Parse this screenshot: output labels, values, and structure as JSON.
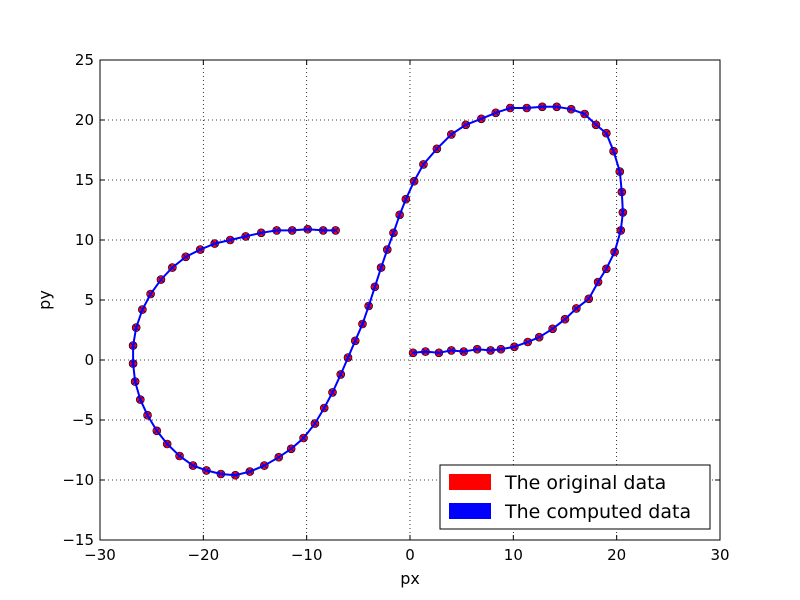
{
  "chart_data": {
    "type": "line",
    "title": "",
    "xlabel": "px",
    "ylabel": "py",
    "xlim": [
      -30,
      30
    ],
    "ylim": [
      -15,
      25
    ],
    "xticks": [
      -30,
      -20,
      -10,
      0,
      10,
      20,
      30
    ],
    "yticks": [
      -15,
      -10,
      -5,
      0,
      5,
      10,
      15,
      20,
      25
    ],
    "xtick_labels": [
      "−30",
      "−20",
      "−10",
      "0",
      "10",
      "20",
      "30"
    ],
    "ytick_labels": [
      "−15",
      "−10",
      "−5",
      "0",
      "5",
      "10",
      "15",
      "20",
      "25"
    ],
    "grid": true,
    "legend_position": "lower-right",
    "series": [
      {
        "name": "The original data",
        "color": "#ff0000",
        "marker": "circle",
        "points": [
          [
            0.3,
            0.6
          ],
          [
            1.5,
            0.7
          ],
          [
            2.8,
            0.6
          ],
          [
            4.0,
            0.8
          ],
          [
            5.2,
            0.7
          ],
          [
            6.5,
            0.9
          ],
          [
            7.8,
            0.8
          ],
          [
            8.8,
            0.9
          ],
          [
            10.1,
            1.1
          ],
          [
            11.4,
            1.5
          ],
          [
            12.5,
            1.9
          ],
          [
            13.8,
            2.6
          ],
          [
            15.0,
            3.4
          ],
          [
            16.1,
            4.3
          ],
          [
            17.3,
            5.1
          ],
          [
            18.2,
            6.5
          ],
          [
            19.0,
            7.6
          ],
          [
            19.8,
            9.0
          ],
          [
            20.4,
            10.8
          ],
          [
            20.6,
            12.3
          ],
          [
            20.5,
            14.0
          ],
          [
            20.3,
            15.7
          ],
          [
            19.7,
            17.4
          ],
          [
            19.0,
            18.9
          ],
          [
            18.0,
            19.6
          ],
          [
            16.9,
            20.5
          ],
          [
            15.6,
            20.9
          ],
          [
            14.2,
            21.1
          ],
          [
            12.8,
            21.1
          ],
          [
            11.3,
            21.0
          ],
          [
            9.7,
            21.0
          ],
          [
            8.3,
            20.6
          ],
          [
            6.9,
            20.1
          ],
          [
            5.4,
            19.6
          ],
          [
            4.0,
            18.8
          ],
          [
            2.6,
            17.6
          ],
          [
            1.3,
            16.3
          ],
          [
            0.4,
            14.9
          ],
          [
            -0.4,
            13.4
          ],
          [
            -1.0,
            12.1
          ],
          [
            -1.6,
            10.6
          ],
          [
            -2.2,
            9.2
          ],
          [
            -2.8,
            7.7
          ],
          [
            -3.4,
            6.1
          ],
          [
            -4.0,
            4.5
          ],
          [
            -4.6,
            3.0
          ],
          [
            -5.3,
            1.6
          ],
          [
            -6.0,
            0.2
          ],
          [
            -6.7,
            -1.2
          ],
          [
            -7.5,
            -2.7
          ],
          [
            -8.3,
            -4.0
          ],
          [
            -9.2,
            -5.3
          ],
          [
            -10.3,
            -6.5
          ],
          [
            -11.5,
            -7.4
          ],
          [
            -12.7,
            -8.1
          ],
          [
            -14.1,
            -8.8
          ],
          [
            -15.5,
            -9.3
          ],
          [
            -16.9,
            -9.6
          ],
          [
            -18.3,
            -9.5
          ],
          [
            -19.7,
            -9.2
          ],
          [
            -21.0,
            -8.8
          ],
          [
            -22.3,
            -8.0
          ],
          [
            -23.5,
            -7.0
          ],
          [
            -24.5,
            -5.9
          ],
          [
            -25.4,
            -4.6
          ],
          [
            -26.1,
            -3.3
          ],
          [
            -26.6,
            -1.8
          ],
          [
            -26.8,
            -0.3
          ],
          [
            -26.8,
            1.2
          ],
          [
            -26.5,
            2.7
          ],
          [
            -25.9,
            4.2
          ],
          [
            -25.1,
            5.5
          ],
          [
            -24.1,
            6.7
          ],
          [
            -23.0,
            7.7
          ],
          [
            -21.7,
            8.6
          ],
          [
            -20.3,
            9.2
          ],
          [
            -18.9,
            9.7
          ],
          [
            -17.4,
            10.0
          ],
          [
            -15.9,
            10.3
          ],
          [
            -14.4,
            10.6
          ],
          [
            -12.9,
            10.8
          ],
          [
            -11.4,
            10.8
          ],
          [
            -9.9,
            10.9
          ],
          [
            -8.4,
            10.8
          ],
          [
            -7.2,
            10.8
          ]
        ]
      },
      {
        "name": "The computed data",
        "color": "#0000ff",
        "marker": "x",
        "points": [
          [
            0.3,
            0.6
          ],
          [
            1.5,
            0.7
          ],
          [
            2.8,
            0.6
          ],
          [
            4.0,
            0.8
          ],
          [
            5.2,
            0.7
          ],
          [
            6.5,
            0.9
          ],
          [
            7.8,
            0.8
          ],
          [
            8.8,
            0.9
          ],
          [
            10.1,
            1.1
          ],
          [
            11.4,
            1.5
          ],
          [
            12.5,
            1.9
          ],
          [
            13.8,
            2.6
          ],
          [
            15.0,
            3.4
          ],
          [
            16.1,
            4.3
          ],
          [
            17.3,
            5.1
          ],
          [
            18.2,
            6.5
          ],
          [
            19.0,
            7.6
          ],
          [
            19.8,
            9.0
          ],
          [
            20.4,
            10.8
          ],
          [
            20.6,
            12.3
          ],
          [
            20.5,
            14.0
          ],
          [
            20.3,
            15.7
          ],
          [
            19.7,
            17.4
          ],
          [
            19.0,
            18.9
          ],
          [
            18.0,
            19.6
          ],
          [
            16.9,
            20.5
          ],
          [
            15.6,
            20.9
          ],
          [
            14.2,
            21.1
          ],
          [
            12.8,
            21.1
          ],
          [
            11.3,
            21.0
          ],
          [
            9.7,
            21.0
          ],
          [
            8.3,
            20.6
          ],
          [
            6.9,
            20.1
          ],
          [
            5.4,
            19.6
          ],
          [
            4.0,
            18.8
          ],
          [
            2.6,
            17.6
          ],
          [
            1.3,
            16.3
          ],
          [
            0.4,
            14.9
          ],
          [
            -0.4,
            13.4
          ],
          [
            -1.0,
            12.1
          ],
          [
            -1.6,
            10.6
          ],
          [
            -2.2,
            9.2
          ],
          [
            -2.8,
            7.7
          ],
          [
            -3.4,
            6.1
          ],
          [
            -4.0,
            4.5
          ],
          [
            -4.6,
            3.0
          ],
          [
            -5.3,
            1.6
          ],
          [
            -6.0,
            0.2
          ],
          [
            -6.7,
            -1.2
          ],
          [
            -7.5,
            -2.7
          ],
          [
            -8.3,
            -4.0
          ],
          [
            -9.2,
            -5.3
          ],
          [
            -10.3,
            -6.5
          ],
          [
            -11.5,
            -7.4
          ],
          [
            -12.7,
            -8.1
          ],
          [
            -14.1,
            -8.8
          ],
          [
            -15.5,
            -9.3
          ],
          [
            -16.9,
            -9.6
          ],
          [
            -18.3,
            -9.5
          ],
          [
            -19.7,
            -9.2
          ],
          [
            -21.0,
            -8.8
          ],
          [
            -22.3,
            -8.0
          ],
          [
            -23.5,
            -7.0
          ],
          [
            -24.5,
            -5.9
          ],
          [
            -25.4,
            -4.6
          ],
          [
            -26.1,
            -3.3
          ],
          [
            -26.6,
            -1.8
          ],
          [
            -26.8,
            -0.3
          ],
          [
            -26.8,
            1.2
          ],
          [
            -26.5,
            2.7
          ],
          [
            -25.9,
            4.2
          ],
          [
            -25.1,
            5.5
          ],
          [
            -24.1,
            6.7
          ],
          [
            -23.0,
            7.7
          ],
          [
            -21.7,
            8.6
          ],
          [
            -20.3,
            9.2
          ],
          [
            -18.9,
            9.7
          ],
          [
            -17.4,
            10.0
          ],
          [
            -15.9,
            10.3
          ],
          [
            -14.4,
            10.6
          ],
          [
            -12.9,
            10.8
          ],
          [
            -11.4,
            10.8
          ],
          [
            -9.9,
            10.9
          ],
          [
            -8.4,
            10.8
          ],
          [
            -7.2,
            10.8
          ]
        ]
      }
    ]
  }
}
